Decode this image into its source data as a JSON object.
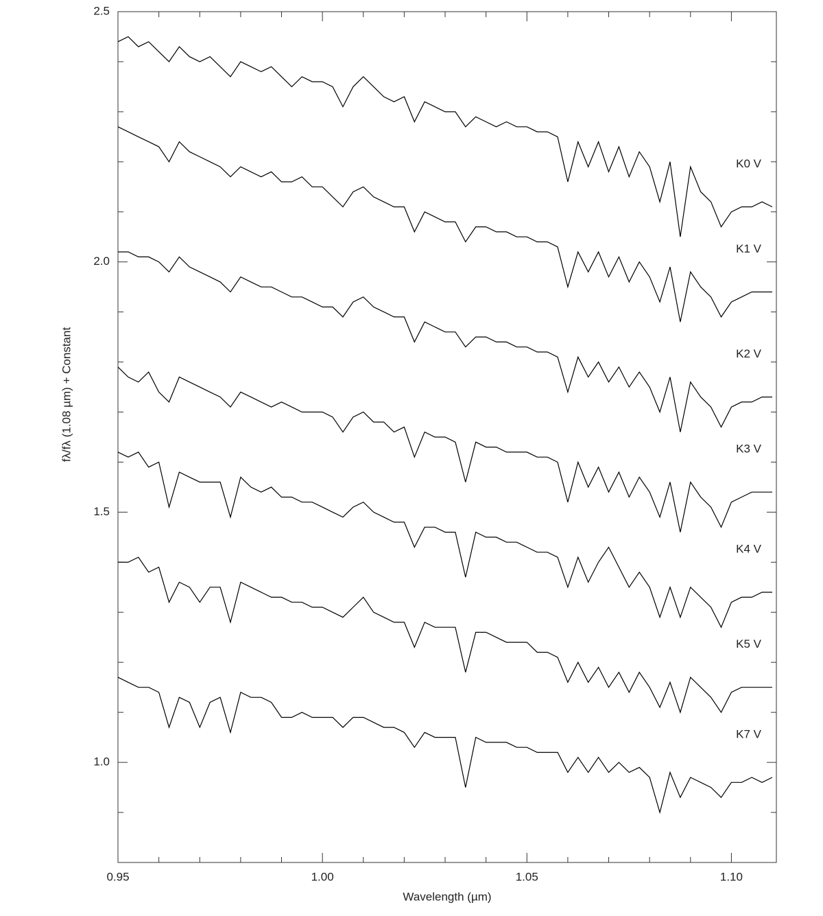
{
  "chart_data": {
    "type": "line",
    "xlabel": "Wavelength (µm)",
    "ylabel": "fλ/fλ (1.08 µm) + Constant",
    "xlim": [
      0.95,
      1.111
    ],
    "ylim": [
      0.8,
      2.5
    ],
    "xticks": [
      0.95,
      {
        "value": 1,
        "label": "1.00"
      },
      1.05,
      {
        "value": 1.1,
        "label": "1.10"
      }
    ],
    "yticks": [
      {
        "value": 1,
        "label": "1.0"
      },
      1.5,
      {
        "value": 2,
        "label": "2.0"
      },
      2.5
    ],
    "xminor": [
      0.96,
      0.97,
      0.98,
      0.99,
      1.01,
      1.02,
      1.03,
      1.04,
      1.06,
      1.07,
      1.08,
      1.09
    ],
    "yminor": [
      0.9,
      1.1,
      1.2,
      1.3,
      1.4,
      1.6,
      1.7,
      1.8,
      1.9,
      2.1,
      2.2,
      2.3,
      2.4
    ],
    "x": [
      0.95,
      0.9525,
      0.955,
      0.9575,
      0.96,
      0.9625,
      0.965,
      0.9675,
      0.97,
      0.9725,
      0.975,
      0.9775,
      0.98,
      0.9825,
      0.985,
      0.9875,
      0.99,
      0.9925,
      0.995,
      0.9975,
      1.0,
      1.0025,
      1.005,
      1.0075,
      1.01,
      1.0125,
      1.015,
      1.0175,
      1.02,
      1.0225,
      1.025,
      1.0275,
      1.03,
      1.0325,
      1.035,
      1.0375,
      1.04,
      1.0425,
      1.045,
      1.0475,
      1.05,
      1.0525,
      1.055,
      1.0575,
      1.06,
      1.0625,
      1.065,
      1.0675,
      1.07,
      1.0725,
      1.075,
      1.0775,
      1.08,
      1.0825,
      1.085,
      1.0875,
      1.09,
      1.0925,
      1.095,
      1.0975,
      1.1,
      1.1025,
      1.105,
      1.1075,
      1.11
    ],
    "series": [
      {
        "name": "K0 V",
        "color": "#000000",
        "values": [
          2.44,
          2.45,
          2.43,
          2.44,
          2.42,
          2.4,
          2.43,
          2.41,
          2.4,
          2.41,
          2.39,
          2.37,
          2.4,
          2.39,
          2.38,
          2.39,
          2.37,
          2.35,
          2.37,
          2.36,
          2.36,
          2.35,
          2.31,
          2.35,
          2.37,
          2.35,
          2.33,
          2.32,
          2.33,
          2.28,
          2.32,
          2.31,
          2.3,
          2.3,
          2.27,
          2.29,
          2.28,
          2.27,
          2.28,
          2.27,
          2.27,
          2.26,
          2.26,
          2.25,
          2.16,
          2.24,
          2.19,
          2.24,
          2.18,
          2.23,
          2.17,
          2.22,
          2.19,
          2.12,
          2.2,
          2.05,
          2.19,
          2.14,
          2.12,
          2.07,
          2.1,
          2.11,
          2.11,
          2.12,
          2.11
        ]
      },
      {
        "name": "K1 V",
        "color": "#000000",
        "values": [
          2.27,
          2.26,
          2.25,
          2.24,
          2.23,
          2.2,
          2.24,
          2.22,
          2.21,
          2.2,
          2.19,
          2.17,
          2.19,
          2.18,
          2.17,
          2.18,
          2.16,
          2.16,
          2.17,
          2.15,
          2.15,
          2.13,
          2.11,
          2.14,
          2.15,
          2.13,
          2.12,
          2.11,
          2.11,
          2.06,
          2.1,
          2.09,
          2.08,
          2.08,
          2.04,
          2.07,
          2.07,
          2.06,
          2.06,
          2.05,
          2.05,
          2.04,
          2.04,
          2.03,
          1.95,
          2.02,
          1.98,
          2.02,
          1.97,
          2.01,
          1.96,
          2.0,
          1.97,
          1.92,
          1.99,
          1.88,
          1.98,
          1.95,
          1.93,
          1.89,
          1.92,
          1.93,
          1.94,
          1.94,
          1.94
        ]
      },
      {
        "name": "K2 V",
        "color": "#000000",
        "values": [
          2.02,
          2.02,
          2.01,
          2.01,
          2.0,
          1.98,
          2.01,
          1.99,
          1.98,
          1.97,
          1.96,
          1.94,
          1.97,
          1.96,
          1.95,
          1.95,
          1.94,
          1.93,
          1.93,
          1.92,
          1.91,
          1.91,
          1.89,
          1.92,
          1.93,
          1.91,
          1.9,
          1.89,
          1.89,
          1.84,
          1.88,
          1.87,
          1.86,
          1.86,
          1.83,
          1.85,
          1.85,
          1.84,
          1.84,
          1.83,
          1.83,
          1.82,
          1.82,
          1.81,
          1.74,
          1.81,
          1.77,
          1.8,
          1.76,
          1.79,
          1.75,
          1.78,
          1.75,
          1.7,
          1.77,
          1.66,
          1.76,
          1.73,
          1.71,
          1.67,
          1.71,
          1.72,
          1.72,
          1.73,
          1.73
        ]
      },
      {
        "name": "K3 V",
        "color": "#000000",
        "values": [
          1.79,
          1.77,
          1.76,
          1.78,
          1.74,
          1.72,
          1.77,
          1.76,
          1.75,
          1.74,
          1.73,
          1.71,
          1.74,
          1.73,
          1.72,
          1.71,
          1.72,
          1.71,
          1.7,
          1.7,
          1.7,
          1.69,
          1.66,
          1.69,
          1.7,
          1.68,
          1.68,
          1.66,
          1.67,
          1.61,
          1.66,
          1.65,
          1.65,
          1.64,
          1.56,
          1.64,
          1.63,
          1.63,
          1.62,
          1.62,
          1.62,
          1.61,
          1.61,
          1.6,
          1.52,
          1.6,
          1.55,
          1.59,
          1.54,
          1.58,
          1.53,
          1.57,
          1.54,
          1.49,
          1.56,
          1.46,
          1.56,
          1.53,
          1.51,
          1.47,
          1.52,
          1.53,
          1.54,
          1.54,
          1.54
        ]
      },
      {
        "name": "K4 V",
        "color": "#000000",
        "values": [
          1.62,
          1.61,
          1.62,
          1.59,
          1.6,
          1.51,
          1.58,
          1.57,
          1.56,
          1.56,
          1.56,
          1.49,
          1.57,
          1.55,
          1.54,
          1.55,
          1.53,
          1.53,
          1.52,
          1.52,
          1.51,
          1.5,
          1.49,
          1.51,
          1.52,
          1.5,
          1.49,
          1.48,
          1.48,
          1.43,
          1.47,
          1.47,
          1.46,
          1.46,
          1.37,
          1.46,
          1.45,
          1.45,
          1.44,
          1.44,
          1.43,
          1.42,
          1.42,
          1.41,
          1.35,
          1.41,
          1.36,
          1.4,
          1.43,
          1.39,
          1.35,
          1.38,
          1.35,
          1.29,
          1.35,
          1.29,
          1.35,
          1.33,
          1.31,
          1.27,
          1.32,
          1.33,
          1.33,
          1.34,
          1.34
        ]
      },
      {
        "name": "K5 V",
        "color": "#000000",
        "values": [
          1.4,
          1.4,
          1.41,
          1.38,
          1.39,
          1.32,
          1.36,
          1.35,
          1.32,
          1.35,
          1.35,
          1.28,
          1.36,
          1.35,
          1.34,
          1.33,
          1.33,
          1.32,
          1.32,
          1.31,
          1.31,
          1.3,
          1.29,
          1.31,
          1.33,
          1.3,
          1.29,
          1.28,
          1.28,
          1.23,
          1.28,
          1.27,
          1.27,
          1.27,
          1.18,
          1.26,
          1.26,
          1.25,
          1.24,
          1.24,
          1.24,
          1.22,
          1.22,
          1.21,
          1.16,
          1.2,
          1.16,
          1.19,
          1.15,
          1.18,
          1.14,
          1.18,
          1.15,
          1.11,
          1.16,
          1.1,
          1.17,
          1.15,
          1.13,
          1.1,
          1.14,
          1.15,
          1.15,
          1.15,
          1.15
        ]
      },
      {
        "name": "K7 V",
        "color": "#000000",
        "values": [
          1.17,
          1.16,
          1.15,
          1.15,
          1.14,
          1.07,
          1.13,
          1.12,
          1.07,
          1.12,
          1.13,
          1.06,
          1.14,
          1.13,
          1.13,
          1.12,
          1.09,
          1.09,
          1.1,
          1.09,
          1.09,
          1.09,
          1.07,
          1.09,
          1.09,
          1.08,
          1.07,
          1.07,
          1.06,
          1.03,
          1.06,
          1.05,
          1.05,
          1.05,
          0.95,
          1.05,
          1.04,
          1.04,
          1.04,
          1.03,
          1.03,
          1.02,
          1.02,
          1.02,
          0.98,
          1.01,
          0.98,
          1.01,
          0.98,
          1.0,
          0.98,
          0.99,
          0.97,
          0.9,
          0.98,
          0.93,
          0.97,
          0.96,
          0.95,
          0.93,
          0.96,
          0.96,
          0.97,
          0.96,
          0.97
        ]
      }
    ]
  }
}
